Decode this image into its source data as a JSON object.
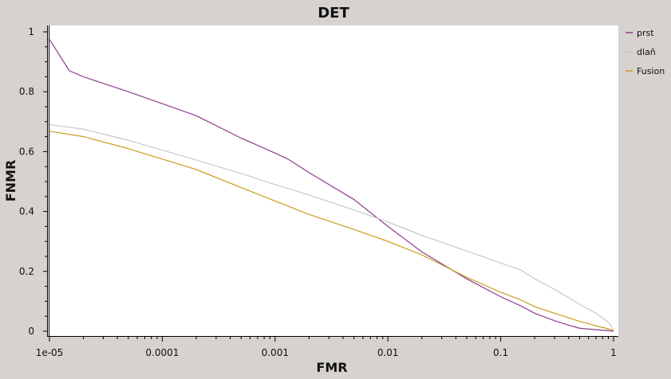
{
  "chart_data": {
    "type": "line",
    "title": "DET",
    "xlabel": "FMR",
    "ylabel": "FNMR",
    "xscale": "log",
    "xlim": [
      1e-05,
      1
    ],
    "ylim": [
      0,
      1
    ],
    "x_ticks": [
      1e-05,
      0.0001,
      0.001,
      0.01,
      0.1,
      1
    ],
    "x_tick_labels": [
      "1e-05",
      "0.0001",
      "0.001",
      "0.01",
      "0.1",
      "1"
    ],
    "y_ticks": [
      0,
      0.2,
      0.4,
      0.6,
      0.8,
      1
    ],
    "y_tick_labels": [
      "0",
      "0.2",
      "0.4",
      "0.6",
      "0.8",
      "1"
    ],
    "legend_position": "right",
    "series": [
      {
        "name": "prst",
        "color": "#8e3c8e",
        "x": [
          1e-05,
          1.5e-05,
          2e-05,
          5e-05,
          0.0001,
          0.0002,
          0.0005,
          0.001,
          0.0013,
          0.002,
          0.005,
          0.01,
          0.02,
          0.05,
          0.1,
          0.15,
          0.2,
          0.3,
          0.4,
          0.5,
          0.7,
          0.9,
          1
        ],
        "y": [
          0.975,
          0.87,
          0.85,
          0.8,
          0.76,
          0.72,
          0.645,
          0.595,
          0.575,
          0.53,
          0.44,
          0.35,
          0.265,
          0.175,
          0.115,
          0.085,
          0.06,
          0.035,
          0.02,
          0.01,
          0.005,
          0.002,
          0.0
        ]
      },
      {
        "name": "dlaň",
        "color": "#c8c8c8",
        "x": [
          1e-05,
          2e-05,
          5e-05,
          0.0001,
          0.0002,
          0.0005,
          0.001,
          0.002,
          0.005,
          0.01,
          0.02,
          0.05,
          0.1,
          0.15,
          0.2,
          0.3,
          0.5,
          0.7,
          0.9,
          1
        ],
        "y": [
          0.69,
          0.675,
          0.638,
          0.605,
          0.572,
          0.527,
          0.49,
          0.455,
          0.405,
          0.365,
          0.32,
          0.268,
          0.228,
          0.205,
          0.175,
          0.14,
          0.09,
          0.06,
          0.03,
          0.005
        ]
      },
      {
        "name": "Fusion",
        "color": "#c89d1c",
        "x": [
          1e-05,
          2e-05,
          5e-05,
          0.0001,
          0.0002,
          0.0005,
          0.001,
          0.002,
          0.005,
          0.01,
          0.02,
          0.05,
          0.1,
          0.15,
          0.2,
          0.3,
          0.5,
          0.7,
          0.9,
          1
        ],
        "y": [
          0.668,
          0.65,
          0.61,
          0.575,
          0.54,
          0.48,
          0.435,
          0.39,
          0.34,
          0.3,
          0.255,
          0.18,
          0.13,
          0.105,
          0.082,
          0.06,
          0.033,
          0.018,
          0.008,
          0.002
        ]
      }
    ]
  }
}
